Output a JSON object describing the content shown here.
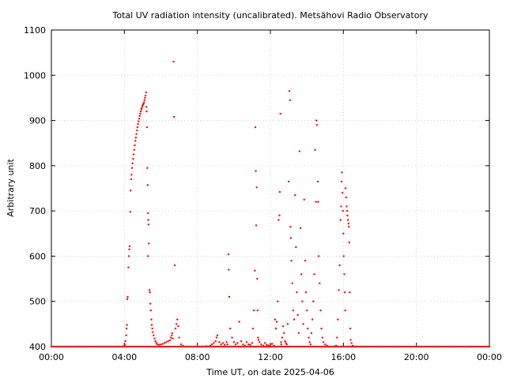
{
  "chart_data": {
    "type": "scatter",
    "title": "Total UV radiation intensity (uncalibrated). Metsähovi Radio Observatory",
    "xlabel": "Time UT, on date 2025-04-06",
    "ylabel": "Arbitrary unit",
    "xlim_hours": [
      0,
      24
    ],
    "ylim": [
      400,
      1100
    ],
    "x_ticks": [
      {
        "hour": 0,
        "label": "00:00"
      },
      {
        "hour": 4,
        "label": "04:00"
      },
      {
        "hour": 8,
        "label": "08:00"
      },
      {
        "hour": 12,
        "label": "12:00"
      },
      {
        "hour": 16,
        "label": "16:00"
      },
      {
        "hour": 20,
        "label": "20:00"
      },
      {
        "hour": 24,
        "label": "00:00"
      }
    ],
    "y_ticks": [
      400,
      500,
      600,
      700,
      800,
      900,
      1000,
      1100
    ],
    "grid": true,
    "marker_color": "#ff0000",
    "series": [
      {
        "points": [
          [
            0.0,
            400
          ],
          [
            0.5,
            400
          ],
          [
            1.0,
            400
          ],
          [
            1.5,
            400
          ],
          [
            2.0,
            400
          ],
          [
            2.5,
            400
          ],
          [
            3.0,
            400
          ],
          [
            3.5,
            400
          ],
          [
            3.9,
            400
          ],
          [
            4.0,
            402
          ],
          [
            4.03,
            405
          ],
          [
            4.06,
            412
          ],
          [
            4.1,
            425
          ],
          [
            4.12,
            440
          ],
          [
            4.14,
            448
          ],
          [
            4.16,
            505
          ],
          [
            4.18,
            510
          ],
          [
            4.22,
            575
          ],
          [
            4.25,
            600
          ],
          [
            4.27,
            615
          ],
          [
            4.29,
            622
          ],
          [
            4.32,
            698
          ],
          [
            4.34,
            745
          ],
          [
            4.37,
            770
          ],
          [
            4.39,
            780
          ],
          [
            4.42,
            795
          ],
          [
            4.45,
            805
          ],
          [
            4.48,
            815
          ],
          [
            4.51,
            825
          ],
          [
            4.54,
            835
          ],
          [
            4.57,
            845
          ],
          [
            4.6,
            855
          ],
          [
            4.63,
            862
          ],
          [
            4.66,
            870
          ],
          [
            4.69,
            878
          ],
          [
            4.72,
            885
          ],
          [
            4.75,
            892
          ],
          [
            4.78,
            898
          ],
          [
            4.81,
            904
          ],
          [
            4.84,
            910
          ],
          [
            4.87,
            915
          ],
          [
            4.9,
            920
          ],
          [
            4.93,
            925
          ],
          [
            4.96,
            928
          ],
          [
            4.99,
            932
          ],
          [
            5.02,
            935
          ],
          [
            5.05,
            937
          ],
          [
            5.08,
            940
          ],
          [
            5.1,
            945
          ],
          [
            5.13,
            950
          ],
          [
            5.16,
            955
          ],
          [
            5.19,
            962
          ],
          [
            5.2,
            930
          ],
          [
            5.22,
            920
          ],
          [
            5.24,
            885
          ],
          [
            5.26,
            795
          ],
          [
            5.28,
            757
          ],
          [
            5.3,
            695
          ],
          [
            5.31,
            680
          ],
          [
            5.32,
            670
          ],
          [
            5.34,
            628
          ],
          [
            5.3,
            600
          ],
          [
            5.38,
            525
          ],
          [
            5.4,
            520
          ],
          [
            5.42,
            495
          ],
          [
            5.45,
            480
          ],
          [
            5.48,
            460
          ],
          [
            5.5,
            448
          ],
          [
            5.53,
            440
          ],
          [
            5.56,
            432
          ],
          [
            5.6,
            425
          ],
          [
            5.65,
            418
          ],
          [
            5.7,
            412
          ],
          [
            5.75,
            408
          ],
          [
            5.8,
            405
          ],
          [
            5.9,
            404
          ],
          [
            6.0,
            405
          ],
          [
            6.1,
            406
          ],
          [
            6.2,
            408
          ],
          [
            6.3,
            410
          ],
          [
            6.4,
            412
          ],
          [
            6.5,
            414
          ],
          [
            6.55,
            420
          ],
          [
            6.6,
            425
          ],
          [
            6.62,
            430
          ],
          [
            6.65,
            418
          ],
          [
            6.7,
            1030
          ],
          [
            6.72,
            908
          ],
          [
            6.76,
            580
          ],
          [
            6.8,
            440
          ],
          [
            6.85,
            450
          ],
          [
            6.9,
            460
          ],
          [
            6.95,
            445
          ],
          [
            7.0,
            420
          ],
          [
            7.1,
            405
          ],
          [
            7.2,
            402
          ],
          [
            7.5,
            400
          ],
          [
            8.0,
            400
          ],
          [
            8.3,
            400
          ],
          [
            8.5,
            401
          ],
          [
            8.7,
            402
          ],
          [
            8.8,
            405
          ],
          [
            8.9,
            408
          ],
          [
            9.0,
            412
          ],
          [
            9.05,
            420
          ],
          [
            9.1,
            425
          ],
          [
            9.2,
            410
          ],
          [
            9.3,
            405
          ],
          [
            9.4,
            408
          ],
          [
            9.5,
            404
          ],
          [
            9.6,
            410
          ],
          [
            9.65,
            405
          ],
          [
            9.7,
            604
          ],
          [
            9.72,
            570
          ],
          [
            9.75,
            510
          ],
          [
            9.8,
            440
          ],
          [
            9.9,
            420
          ],
          [
            10.0,
            410
          ],
          [
            10.1,
            405
          ],
          [
            10.2,
            408
          ],
          [
            10.3,
            455
          ],
          [
            10.4,
            412
          ],
          [
            10.5,
            405
          ],
          [
            10.6,
            402
          ],
          [
            10.7,
            410
          ],
          [
            10.8,
            405
          ],
          [
            10.9,
            404
          ],
          [
            11.0,
            408
          ],
          [
            11.05,
            440
          ],
          [
            11.1,
            480
          ],
          [
            11.15,
            568
          ],
          [
            11.18,
            885
          ],
          [
            11.2,
            788
          ],
          [
            11.22,
            668
          ],
          [
            11.25,
            752
          ],
          [
            11.28,
            550
          ],
          [
            11.3,
            480
          ],
          [
            11.32,
            420
          ],
          [
            11.35,
            415
          ],
          [
            11.4,
            410
          ],
          [
            11.5,
            405
          ],
          [
            11.6,
            402
          ],
          [
            11.7,
            408
          ],
          [
            11.8,
            404
          ],
          [
            11.9,
            402
          ],
          [
            12.0,
            405
          ],
          [
            12.1,
            406
          ],
          [
            12.2,
            402
          ],
          [
            12.25,
            460
          ],
          [
            12.3,
            440
          ],
          [
            12.35,
            455
          ],
          [
            12.4,
            500
          ],
          [
            12.45,
            680
          ],
          [
            12.5,
            690
          ],
          [
            12.52,
            742
          ],
          [
            12.55,
            915
          ],
          [
            12.58,
            410
          ],
          [
            12.6,
            405
          ],
          [
            12.65,
            420
          ],
          [
            12.7,
            445
          ],
          [
            12.75,
            430
          ],
          [
            12.8,
            412
          ],
          [
            12.85,
            408
          ],
          [
            12.9,
            405
          ],
          [
            12.95,
            450
          ],
          [
            13.0,
            765
          ],
          [
            13.05,
            965
          ],
          [
            13.08,
            945
          ],
          [
            13.1,
            665
          ],
          [
            13.12,
            640
          ],
          [
            13.15,
            590
          ],
          [
            13.2,
            540
          ],
          [
            13.25,
            480
          ],
          [
            13.3,
            460
          ],
          [
            13.35,
            735
          ],
          [
            13.4,
            620
          ],
          [
            13.45,
            520
          ],
          [
            13.5,
            470
          ],
          [
            13.55,
            430
          ],
          [
            13.6,
            832
          ],
          [
            13.65,
            662
          ],
          [
            13.7,
            560
          ],
          [
            13.75,
            500
          ],
          [
            13.8,
            450
          ],
          [
            13.85,
            725
          ],
          [
            13.9,
            590
          ],
          [
            13.95,
            520
          ],
          [
            14.0,
            480
          ],
          [
            14.05,
            440
          ],
          [
            14.1,
            420
          ],
          [
            14.15,
            410
          ],
          [
            14.2,
            405
          ],
          [
            14.25,
            430
          ],
          [
            14.3,
            460
          ],
          [
            14.35,
            500
          ],
          [
            14.4,
            560
          ],
          [
            14.45,
            835
          ],
          [
            14.5,
            720
          ],
          [
            14.52,
            900
          ],
          [
            14.55,
            890
          ],
          [
            14.6,
            765
          ],
          [
            14.62,
            720
          ],
          [
            14.65,
            600
          ],
          [
            14.7,
            540
          ],
          [
            14.75,
            480
          ],
          [
            14.8,
            440
          ],
          [
            14.85,
            420
          ],
          [
            14.9,
            410
          ],
          [
            15.0,
            405
          ],
          [
            15.1,
            402
          ],
          [
            15.2,
            400
          ],
          [
            15.5,
            400
          ],
          [
            15.6,
            402
          ],
          [
            15.65,
            420
          ],
          [
            15.7,
            460
          ],
          [
            15.75,
            525
          ],
          [
            15.8,
            580
          ],
          [
            15.85,
            680
          ],
          [
            15.88,
            710
          ],
          [
            15.9,
            765
          ],
          [
            15.92,
            785
          ],
          [
            15.95,
            740
          ],
          [
            15.98,
            700
          ],
          [
            16.0,
            650
          ],
          [
            16.02,
            600
          ],
          [
            16.05,
            560
          ],
          [
            16.08,
            520
          ],
          [
            16.1,
            480
          ],
          [
            16.12,
            750
          ],
          [
            16.15,
            730
          ],
          [
            16.18,
            710
          ],
          [
            16.2,
            700
          ],
          [
            16.22,
            690
          ],
          [
            16.25,
            680
          ],
          [
            16.28,
            672
          ],
          [
            16.3,
            665
          ],
          [
            16.32,
            630
          ],
          [
            16.35,
            520
          ],
          [
            16.38,
            440
          ],
          [
            16.4,
            415
          ],
          [
            16.45,
            408
          ],
          [
            16.5,
            402
          ],
          [
            16.6,
            400
          ],
          [
            17.0,
            400
          ],
          [
            18.0,
            400
          ],
          [
            19.0,
            400
          ],
          [
            20.0,
            400
          ],
          [
            21.0,
            400
          ],
          [
            22.0,
            400
          ],
          [
            23.0,
            400
          ],
          [
            24.0,
            400
          ]
        ]
      }
    ]
  }
}
